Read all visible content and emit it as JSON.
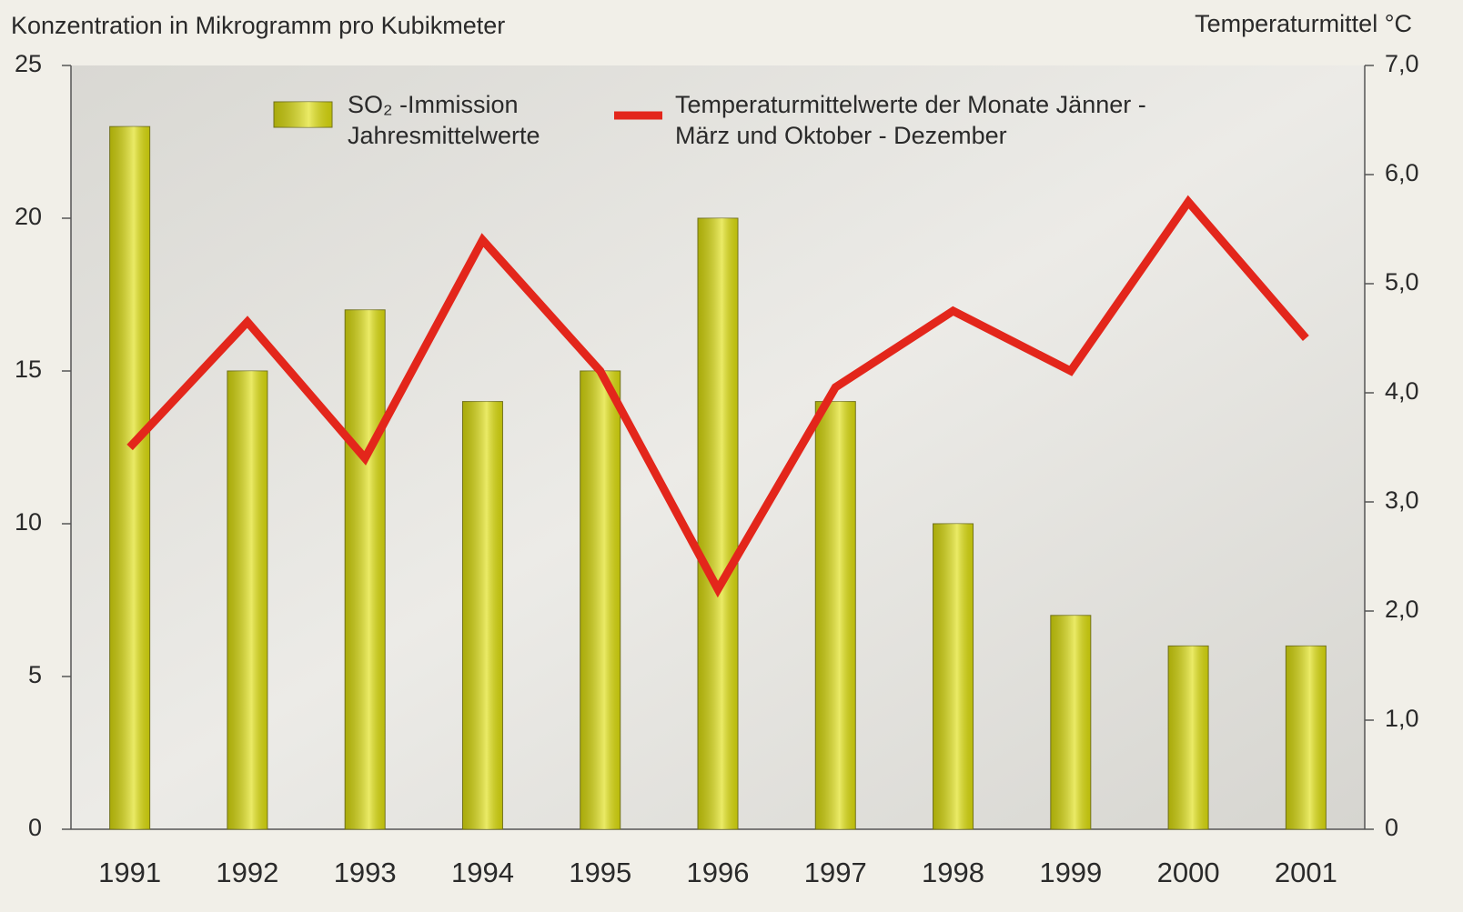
{
  "chart_data": {
    "type": "bar",
    "y_label": "Konzentration in Mikrogramm pro Kubikmeter",
    "y2_label": "Temperaturmittel °C",
    "categories": [
      "1991",
      "1992",
      "1993",
      "1994",
      "1995",
      "1996",
      "1997",
      "1998",
      "1999",
      "2000",
      "2001"
    ],
    "series": [
      {
        "name": "SO₂ -Immission Jahresmittelwerte",
        "type": "bar",
        "color": "#cccc10",
        "values": [
          23,
          15,
          17,
          14,
          15,
          20,
          14,
          10,
          7,
          6,
          6
        ]
      },
      {
        "name": "Temperaturmittelwerte der Monate Jänner - März und Oktober - Dezember",
        "type": "line",
        "axis": "y2",
        "color": "#e3261b",
        "values": [
          3.5,
          4.65,
          3.4,
          5.4,
          4.2,
          2.2,
          4.05,
          4.75,
          4.2,
          5.75,
          4.5
        ]
      }
    ],
    "ylim": [
      0,
      25
    ],
    "yticks": [
      0,
      5,
      10,
      15,
      20,
      25
    ],
    "y2lim": [
      0,
      7
    ],
    "y2ticks": [
      0,
      {
        "value": 1,
        "label": "1,0"
      },
      {
        "value": 2,
        "label": "2,0"
      },
      {
        "value": 3,
        "label": "3,0"
      },
      {
        "value": 4,
        "label": "4,0"
      },
      {
        "value": 5,
        "label": "5,0"
      },
      {
        "value": 6,
        "label": "6,0"
      },
      {
        "value": 7,
        "label": "7,0"
      }
    ],
    "grid": false,
    "legend": "top"
  }
}
